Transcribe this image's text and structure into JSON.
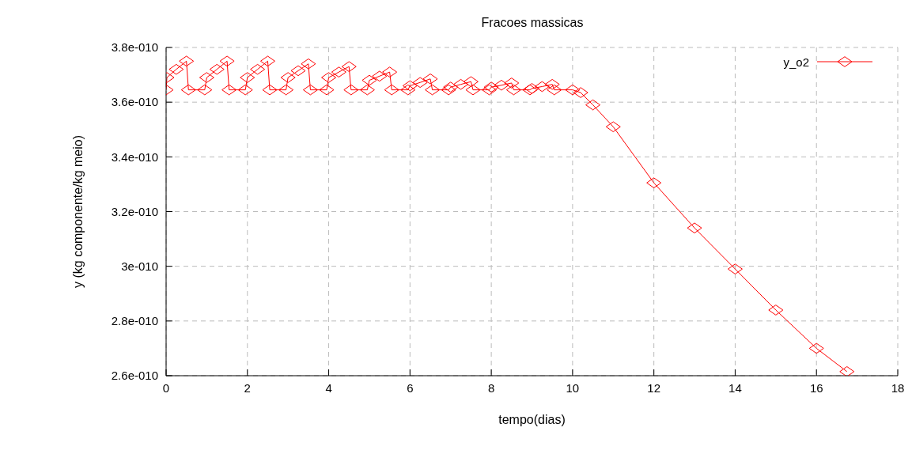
{
  "chart_data": {
    "type": "line",
    "title": "Fracoes massicas",
    "xlabel": "tempo(dias)",
    "ylabel": "y (kg componente/kg meio)",
    "xlim": [
      0,
      18
    ],
    "xticks": [
      0,
      2,
      4,
      6,
      8,
      10,
      12,
      14,
      16,
      18
    ],
    "ylim": [
      2.6e-10,
      3.8e-10
    ],
    "yticks": [
      {
        "value": 2.6e-10,
        "label": "2.6e-010"
      },
      {
        "value": 2.8e-10,
        "label": "2.8e-010"
      },
      {
        "value": 3e-10,
        "label": "3e-010"
      },
      {
        "value": 3.2e-10,
        "label": "3.2e-010"
      },
      {
        "value": 3.4e-10,
        "label": "3.4e-010"
      },
      {
        "value": 3.6e-10,
        "label": "3.6e-010"
      },
      {
        "value": 3.8e-10,
        "label": "3.8e-010"
      }
    ],
    "grid": true,
    "legend": "top right",
    "marker": "diamond",
    "line_style": "solid",
    "series": [
      {
        "name": "y_o2",
        "color": "#ff0000",
        "x": [
          0,
          0.02,
          0.25,
          0.5,
          0.55,
          0.95,
          1,
          1.25,
          1.5,
          1.55,
          1.95,
          2,
          2.25,
          2.5,
          2.55,
          2.95,
          3,
          3.25,
          3.5,
          3.55,
          3.95,
          4,
          4.25,
          4.5,
          4.55,
          4.95,
          5,
          5.25,
          5.5,
          5.55,
          5.95,
          6,
          6.25,
          6.5,
          6.55,
          6.95,
          7,
          7.25,
          7.5,
          7.55,
          7.95,
          8,
          8.25,
          8.5,
          8.55,
          8.95,
          9,
          9.25,
          9.5,
          9.55,
          10,
          10.2,
          10.5,
          11,
          12,
          13,
          14,
          15,
          16,
          16.75
        ],
        "values": [
          3.645e-10,
          3.69e-10,
          3.72e-10,
          3.75e-10,
          3.645e-10,
          3.645e-10,
          3.69e-10,
          3.72e-10,
          3.75e-10,
          3.645e-10,
          3.645e-10,
          3.69e-10,
          3.72e-10,
          3.75e-10,
          3.645e-10,
          3.645e-10,
          3.69e-10,
          3.715e-10,
          3.74e-10,
          3.645e-10,
          3.645e-10,
          3.69e-10,
          3.71e-10,
          3.73e-10,
          3.645e-10,
          3.645e-10,
          3.68e-10,
          3.695e-10,
          3.71e-10,
          3.645e-10,
          3.645e-10,
          3.66e-10,
          3.672e-10,
          3.685e-10,
          3.645e-10,
          3.645e-10,
          3.655e-10,
          3.665e-10,
          3.675e-10,
          3.645e-10,
          3.645e-10,
          3.655e-10,
          3.662e-10,
          3.67e-10,
          3.645e-10,
          3.645e-10,
          3.65e-10,
          3.657e-10,
          3.665e-10,
          3.645e-10,
          3.645e-10,
          3.635e-10,
          3.59e-10,
          3.51e-10,
          3.305e-10,
          3.14e-10,
          2.99e-10,
          2.84e-10,
          2.7e-10,
          2.615e-10
        ]
      }
    ]
  }
}
